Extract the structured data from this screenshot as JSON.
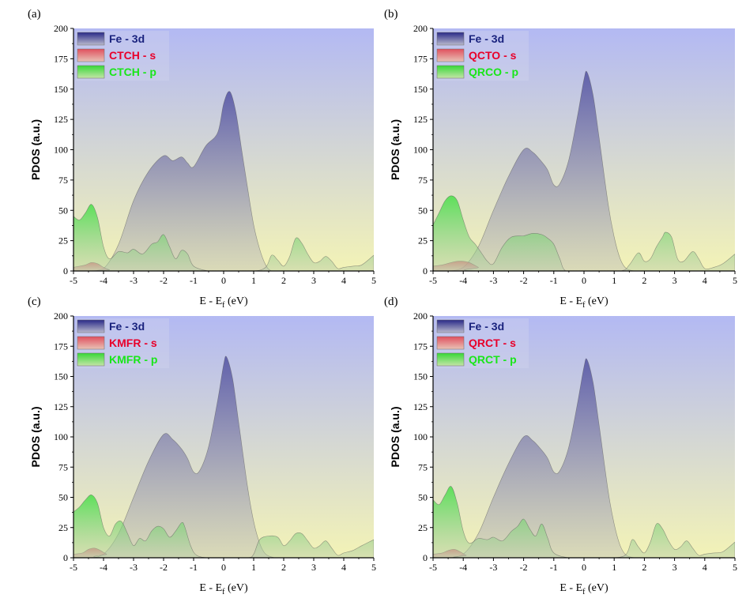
{
  "chart_data": [
    {
      "type": "area",
      "panel_label": "(a)",
      "xlabel": "E - E",
      "xlabel_sub": "f",
      "xlabel_unit": " (eV)",
      "ylabel": "PDOS (a.u.)",
      "xlim": [
        -5,
        5
      ],
      "ylim": [
        0,
        200
      ],
      "xticks": [
        "-5",
        "-4",
        "-3",
        "-2",
        "-1",
        "0",
        "1",
        "2",
        "3",
        "4",
        "5"
      ],
      "yticks": [
        "0",
        "25",
        "50",
        "75",
        "100",
        "125",
        "150",
        "175",
        "200"
      ],
      "legend_position": "top-left",
      "series": [
        {
          "name": "Fe - 3d",
          "color": "#5858a8",
          "x": [
            -5,
            -4.5,
            -4,
            -3.5,
            -3,
            -2.5,
            -2,
            -1.7,
            -1.4,
            -1.2,
            -1,
            -0.6,
            -0.2,
            0,
            0.2,
            0.4,
            0.6,
            0.8,
            1,
            1.2,
            1.4,
            1.6,
            2,
            5
          ],
          "y": [
            0,
            0,
            2,
            22,
            58,
            82,
            95,
            91,
            94,
            89,
            86,
            103,
            114,
            138,
            148,
            132,
            100,
            68,
            38,
            18,
            5,
            0,
            0,
            0
          ]
        },
        {
          "name": "CTCH - s",
          "color": "#d9303f",
          "x": [
            -5,
            -4.8,
            -4.6,
            -4.4,
            -4.2,
            -4,
            -3.8,
            -3.5,
            5
          ],
          "y": [
            3,
            4,
            5,
            7,
            6,
            3,
            1,
            0,
            0
          ]
        },
        {
          "name": "CTCH - p",
          "color": "#3cd93c",
          "x": [
            -5,
            -4.8,
            -4.6,
            -4.4,
            -4.2,
            -4,
            -3.8,
            -3.5,
            -3.2,
            -3,
            -2.7,
            -2.4,
            -2.2,
            -2,
            -1.8,
            -1.6,
            -1.4,
            -1.2,
            -1,
            -0.5,
            0,
            1,
            1.4,
            1.6,
            1.8,
            2,
            2.2,
            2.4,
            2.6,
            2.8,
            3,
            3.2,
            3.4,
            3.6,
            3.8,
            4,
            4.3,
            4.6,
            5
          ],
          "y": [
            45,
            42,
            48,
            55,
            44,
            20,
            10,
            16,
            15,
            18,
            14,
            22,
            24,
            30,
            20,
            10,
            17,
            14,
            4,
            0,
            0,
            0,
            3,
            13,
            9,
            4,
            12,
            27,
            23,
            14,
            7,
            8,
            12,
            8,
            2,
            3,
            4,
            5,
            13
          ]
        }
      ]
    },
    {
      "type": "area",
      "panel_label": "(b)",
      "xlabel": "E - E",
      "xlabel_sub": "f",
      "xlabel_unit": " (eV)",
      "ylabel": "PDOS (a.u.)",
      "xlim": [
        -5,
        5
      ],
      "ylim": [
        0,
        200
      ],
      "xticks": [
        "-5",
        "-4",
        "-3",
        "-2",
        "-1",
        "0",
        "1",
        "2",
        "3",
        "4",
        "5"
      ],
      "yticks": [
        "0",
        "25",
        "50",
        "75",
        "100",
        "125",
        "150",
        "175",
        "200"
      ],
      "legend_position": "top-left",
      "series": [
        {
          "name": "Fe - 3d",
          "color": "#5858a8",
          "x": [
            -5,
            -4.5,
            -4,
            -3.5,
            -3,
            -2.5,
            -2,
            -1.7,
            -1.4,
            -1.2,
            -1,
            -0.8,
            -0.5,
            -0.2,
            0,
            0.1,
            0.3,
            0.5,
            0.8,
            1,
            1.2,
            1.4,
            1.7,
            2,
            5
          ],
          "y": [
            0,
            0,
            3,
            20,
            50,
            78,
            100,
            98,
            90,
            83,
            71,
            72,
            92,
            130,
            158,
            164,
            145,
            110,
            55,
            28,
            10,
            2,
            0,
            0,
            0
          ]
        },
        {
          "name": "QCTO - s",
          "color": "#d9303f",
          "x": [
            -5,
            -4.7,
            -4.4,
            -4.2,
            -4,
            -3.8,
            -3.5,
            -3.3,
            5
          ],
          "y": [
            4,
            5,
            7,
            8,
            8,
            7,
            3,
            0,
            0
          ]
        },
        {
          "name": "QRCO - p",
          "color": "#3cd93c",
          "x": [
            -5,
            -4.8,
            -4.6,
            -4.4,
            -4.2,
            -4,
            -3.8,
            -3.6,
            -3.4,
            -3.2,
            -3,
            -2.7,
            -2.4,
            -2,
            -1.7,
            -1.4,
            -1.2,
            -1,
            -0.8,
            -0.6,
            0,
            1.2,
            1.5,
            1.8,
            2,
            2.2,
            2.4,
            2.6,
            2.7,
            2.9,
            3.1,
            3.3,
            3.6,
            3.8,
            4,
            4.3,
            4.6,
            5
          ],
          "y": [
            38,
            48,
            58,
            62,
            58,
            42,
            28,
            22,
            15,
            8,
            6,
            20,
            28,
            29,
            31,
            30,
            27,
            22,
            10,
            0,
            0,
            0,
            5,
            15,
            8,
            10,
            20,
            28,
            32,
            28,
            10,
            8,
            16,
            10,
            2,
            3,
            6,
            14
          ]
        }
      ]
    },
    {
      "type": "area",
      "panel_label": "(c)",
      "xlabel": "E - E",
      "xlabel_sub": "f",
      "xlabel_unit": " (eV)",
      "ylabel": "PDOS (a.u.)",
      "xlim": [
        -5,
        5
      ],
      "ylim": [
        0,
        200
      ],
      "xticks": [
        "-5",
        "-4",
        "-3",
        "-2",
        "-1",
        "0",
        "1",
        "2",
        "3",
        "4",
        "5"
      ],
      "yticks": [
        "0",
        "25",
        "50",
        "75",
        "100",
        "125",
        "150",
        "175",
        "200"
      ],
      "legend_position": "top-left",
      "series": [
        {
          "name": "Fe - 3d",
          "color": "#5858a8",
          "x": [
            -5,
            -4.5,
            -4,
            -3.5,
            -3,
            -2.5,
            -2,
            -1.7,
            -1.4,
            -1.2,
            -1,
            -0.8,
            -0.5,
            -0.2,
            0,
            0.1,
            0.3,
            0.5,
            0.8,
            1,
            1.2,
            1.4,
            1.7,
            2,
            5
          ],
          "y": [
            0,
            0,
            3,
            20,
            50,
            80,
            102,
            98,
            90,
            82,
            71,
            72,
            92,
            130,
            160,
            166,
            148,
            112,
            58,
            30,
            12,
            3,
            0,
            0,
            0
          ]
        },
        {
          "name": "KMFR - s",
          "color": "#d9303f",
          "x": [
            -5,
            -4.7,
            -4.5,
            -4.3,
            -4.1,
            -3.9,
            -3.6,
            5
          ],
          "y": [
            3,
            4,
            7,
            8,
            6,
            3,
            0,
            0
          ]
        },
        {
          "name": "KMFR - p",
          "color": "#3cd93c",
          "x": [
            -5,
            -4.8,
            -4.6,
            -4.4,
            -4.2,
            -4,
            -3.8,
            -3.6,
            -3.4,
            -3.2,
            -3,
            -2.8,
            -2.6,
            -2.4,
            -2.2,
            -2,
            -1.8,
            -1.6,
            -1.4,
            -1.3,
            -1.1,
            -0.9,
            -0.5,
            0,
            0.8,
            1,
            1.2,
            1.5,
            1.8,
            2,
            2.2,
            2.4,
            2.6,
            2.8,
            3,
            3.2,
            3.4,
            3.6,
            3.8,
            4,
            4.3,
            4.6,
            5
          ],
          "y": [
            38,
            42,
            48,
            52,
            45,
            25,
            18,
            28,
            30,
            20,
            10,
            16,
            14,
            22,
            26,
            24,
            17,
            22,
            29,
            26,
            10,
            2,
            0,
            0,
            0,
            3,
            15,
            18,
            17,
            10,
            14,
            20,
            20,
            14,
            8,
            10,
            14,
            8,
            2,
            4,
            6,
            10,
            15
          ]
        }
      ]
    },
    {
      "type": "area",
      "panel_label": "(d)",
      "xlabel": "E - E",
      "xlabel_sub": "f",
      "xlabel_unit": " (eV)",
      "ylabel": "PDOS (a.u.)",
      "xlim": [
        -5,
        5
      ],
      "ylim": [
        0,
        200
      ],
      "xticks": [
        "-5",
        "-4",
        "-3",
        "-2",
        "-1",
        "0",
        "1",
        "2",
        "3",
        "4",
        "5"
      ],
      "yticks": [
        "0",
        "25",
        "50",
        "75",
        "100",
        "125",
        "150",
        "175",
        "200"
      ],
      "legend_position": "top-left",
      "series": [
        {
          "name": "Fe - 3d",
          "color": "#5858a8",
          "x": [
            -5,
            -4.5,
            -4,
            -3.5,
            -3,
            -2.5,
            -2,
            -1.7,
            -1.4,
            -1.2,
            -1,
            -0.8,
            -0.5,
            -0.2,
            0,
            0.1,
            0.3,
            0.5,
            0.8,
            1,
            1.2,
            1.4,
            1.7,
            2,
            5
          ],
          "y": [
            0,
            0,
            3,
            20,
            50,
            78,
            100,
            97,
            89,
            82,
            71,
            72,
            92,
            130,
            158,
            164,
            145,
            110,
            55,
            28,
            10,
            2,
            0,
            0,
            0
          ]
        },
        {
          "name": "QRCT - s",
          "color": "#d9303f",
          "x": [
            -5,
            -4.7,
            -4.5,
            -4.3,
            -4.1,
            -3.9,
            -3.6,
            5
          ],
          "y": [
            3,
            4,
            6,
            7,
            5,
            2,
            0,
            0
          ]
        },
        {
          "name": "QRCT - p",
          "color": "#3cd93c",
          "x": [
            -5,
            -4.8,
            -4.6,
            -4.4,
            -4.2,
            -4,
            -3.8,
            -3.5,
            -3.2,
            -3,
            -2.7,
            -2.4,
            -2.2,
            -2,
            -1.8,
            -1.6,
            -1.4,
            -1.2,
            -1,
            -0.5,
            0,
            1,
            1.4,
            1.6,
            1.8,
            2,
            2.2,
            2.4,
            2.6,
            2.8,
            3,
            3.2,
            3.4,
            3.6,
            3.8,
            4,
            4.3,
            4.6,
            5
          ],
          "y": [
            48,
            44,
            52,
            59,
            45,
            22,
            12,
            16,
            15,
            17,
            14,
            22,
            26,
            32,
            24,
            18,
            28,
            16,
            4,
            0,
            0,
            0,
            3,
            15,
            9,
            4,
            13,
            28,
            24,
            14,
            7,
            9,
            14,
            8,
            2,
            3,
            4,
            5,
            13
          ]
        }
      ]
    }
  ],
  "colors": {
    "background_top": "#b3b9f3",
    "background_bottom": "#f3f3b6",
    "fe_fill_top": "#5c5ca8",
    "fe_fill_bottom": "#c6c6b8",
    "legend_fe_text": "#1a237e",
    "legend_s_text": "#e8002a",
    "legend_p_text": "#19e619"
  }
}
